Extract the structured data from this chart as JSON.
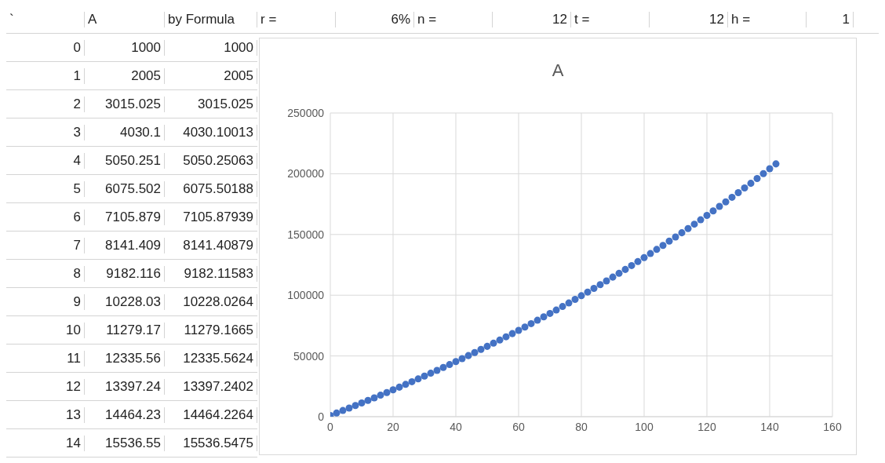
{
  "chart_data": {
    "type": "scatter",
    "title": "A",
    "x": [
      0,
      2,
      4,
      6,
      8,
      10,
      12,
      14,
      16,
      18,
      20,
      22,
      24,
      26,
      28,
      30,
      32,
      34,
      36,
      38,
      40,
      42,
      44,
      46,
      48,
      50,
      52,
      54,
      56,
      58,
      60,
      62,
      64,
      66,
      68,
      70,
      72,
      74,
      76,
      78,
      80,
      82,
      84,
      86,
      88,
      90,
      92,
      94,
      96,
      98,
      100,
      102,
      104,
      106,
      108,
      110,
      112,
      114,
      116,
      118,
      120,
      122,
      124,
      126,
      128,
      130,
      132,
      134,
      136,
      138,
      140,
      142
    ],
    "series": [
      {
        "color": "#4472c4",
        "values": [
          1000,
          3000,
          5100,
          7100,
          9200,
          11300,
          13400,
          15500,
          17700,
          19900,
          22100,
          24300,
          26600,
          28800,
          31100,
          33400,
          35800,
          38100,
          40500,
          42900,
          45400,
          47800,
          50300,
          52800,
          55400,
          57900,
          60500,
          63100,
          65800,
          68400,
          71100,
          73800,
          76600,
          79400,
          82200,
          85000,
          87800,
          90700,
          93600,
          96600,
          99600,
          102600,
          105600,
          108700,
          111800,
          114900,
          118000,
          121200,
          124400,
          127700,
          131000,
          134300,
          137700,
          141000,
          144500,
          147900,
          151400,
          154900,
          158500,
          162100,
          165700,
          169400,
          173100,
          176800,
          180600,
          184400,
          188300,
          192100,
          196100,
          200100,
          204100,
          208100
        ]
      }
    ],
    "xlim": [
      0,
      160
    ],
    "xticks": [
      0,
      20,
      40,
      60,
      80,
      100,
      120,
      140,
      160
    ],
    "ylim": [
      0,
      250000
    ],
    "yticks": [
      0,
      50000,
      100000,
      150000,
      200000,
      250000
    ],
    "grid": true,
    "legend": false,
    "marker": "circle",
    "annotations": [
      "`",
      "A",
      "by Formula",
      "r =",
      "6%",
      "n =",
      "12",
      "t =",
      "12",
      "h =",
      "1",
      "0",
      "1000",
      "1000",
      "1",
      "2005",
      "2005",
      "2",
      "3015.025",
      "3015.025",
      "3",
      "4030.1",
      "4030.10013",
      "4",
      "5050.251",
      "5050.25063",
      "5",
      "6075.502",
      "6075.50188",
      "6",
      "7105.879",
      "7105.87939",
      "7",
      "8141.409",
      "8141.40879",
      "8",
      "9182.116",
      "9182.11583",
      "9",
      "10228.03",
      "10228.0264",
      "10",
      "11279.17",
      "11279.1665",
      "11",
      "12335.56",
      "12335.5624",
      "12",
      "13397.24",
      "13397.2402",
      "13",
      "14464.23",
      "14464.2264",
      "14",
      "15536.55",
      "15536.5475"
    ]
  }
}
